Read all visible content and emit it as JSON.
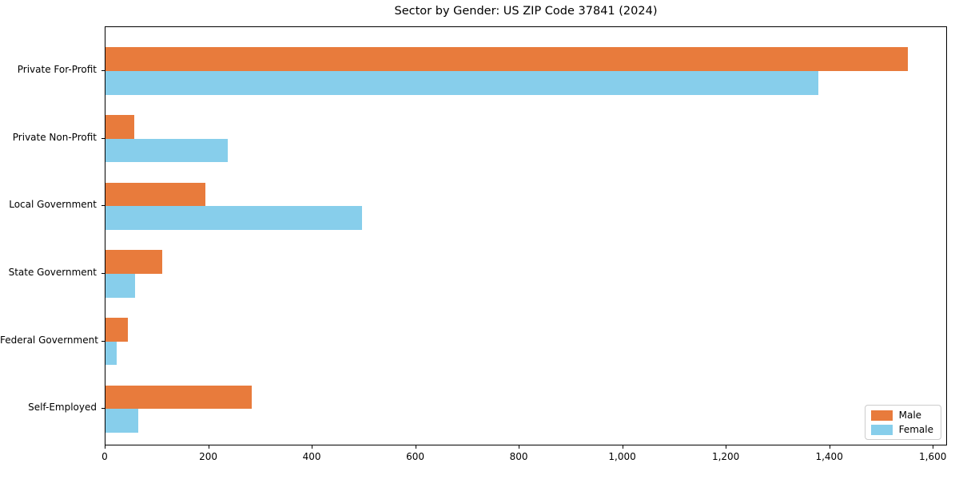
{
  "chart_data": {
    "type": "bar",
    "orientation": "horizontal",
    "title": "Sector by Gender: US ZIP Code 37841 (2024)",
    "xlabel": "",
    "ylabel": "",
    "categories": [
      "Private For-Profit",
      "Private Non-Profit",
      "Local Government",
      "State Government",
      "Federal Government",
      "Self-Employed"
    ],
    "series": [
      {
        "name": "Male",
        "color": "#e87b3c",
        "values": [
          1550,
          55,
          193,
          110,
          44,
          282
        ]
      },
      {
        "name": "Female",
        "color": "#87ceeb",
        "values": [
          1377,
          237,
          495,
          57,
          21,
          63
        ]
      }
    ],
    "xlim": [
      0,
      1627.5
    ],
    "xticks": [
      0,
      200,
      400,
      600,
      800,
      1000,
      1200,
      1400,
      1600
    ],
    "xtick_labels": [
      "0",
      "200",
      "400",
      "600",
      "800",
      "1,000",
      "1,200",
      "1,400",
      "1,600"
    ],
    "grid": false,
    "legend_position": "lower right",
    "legend": {
      "items": [
        {
          "label": "Male",
          "color": "#e87b3c"
        },
        {
          "label": "Female",
          "color": "#87ceeb"
        }
      ]
    }
  }
}
